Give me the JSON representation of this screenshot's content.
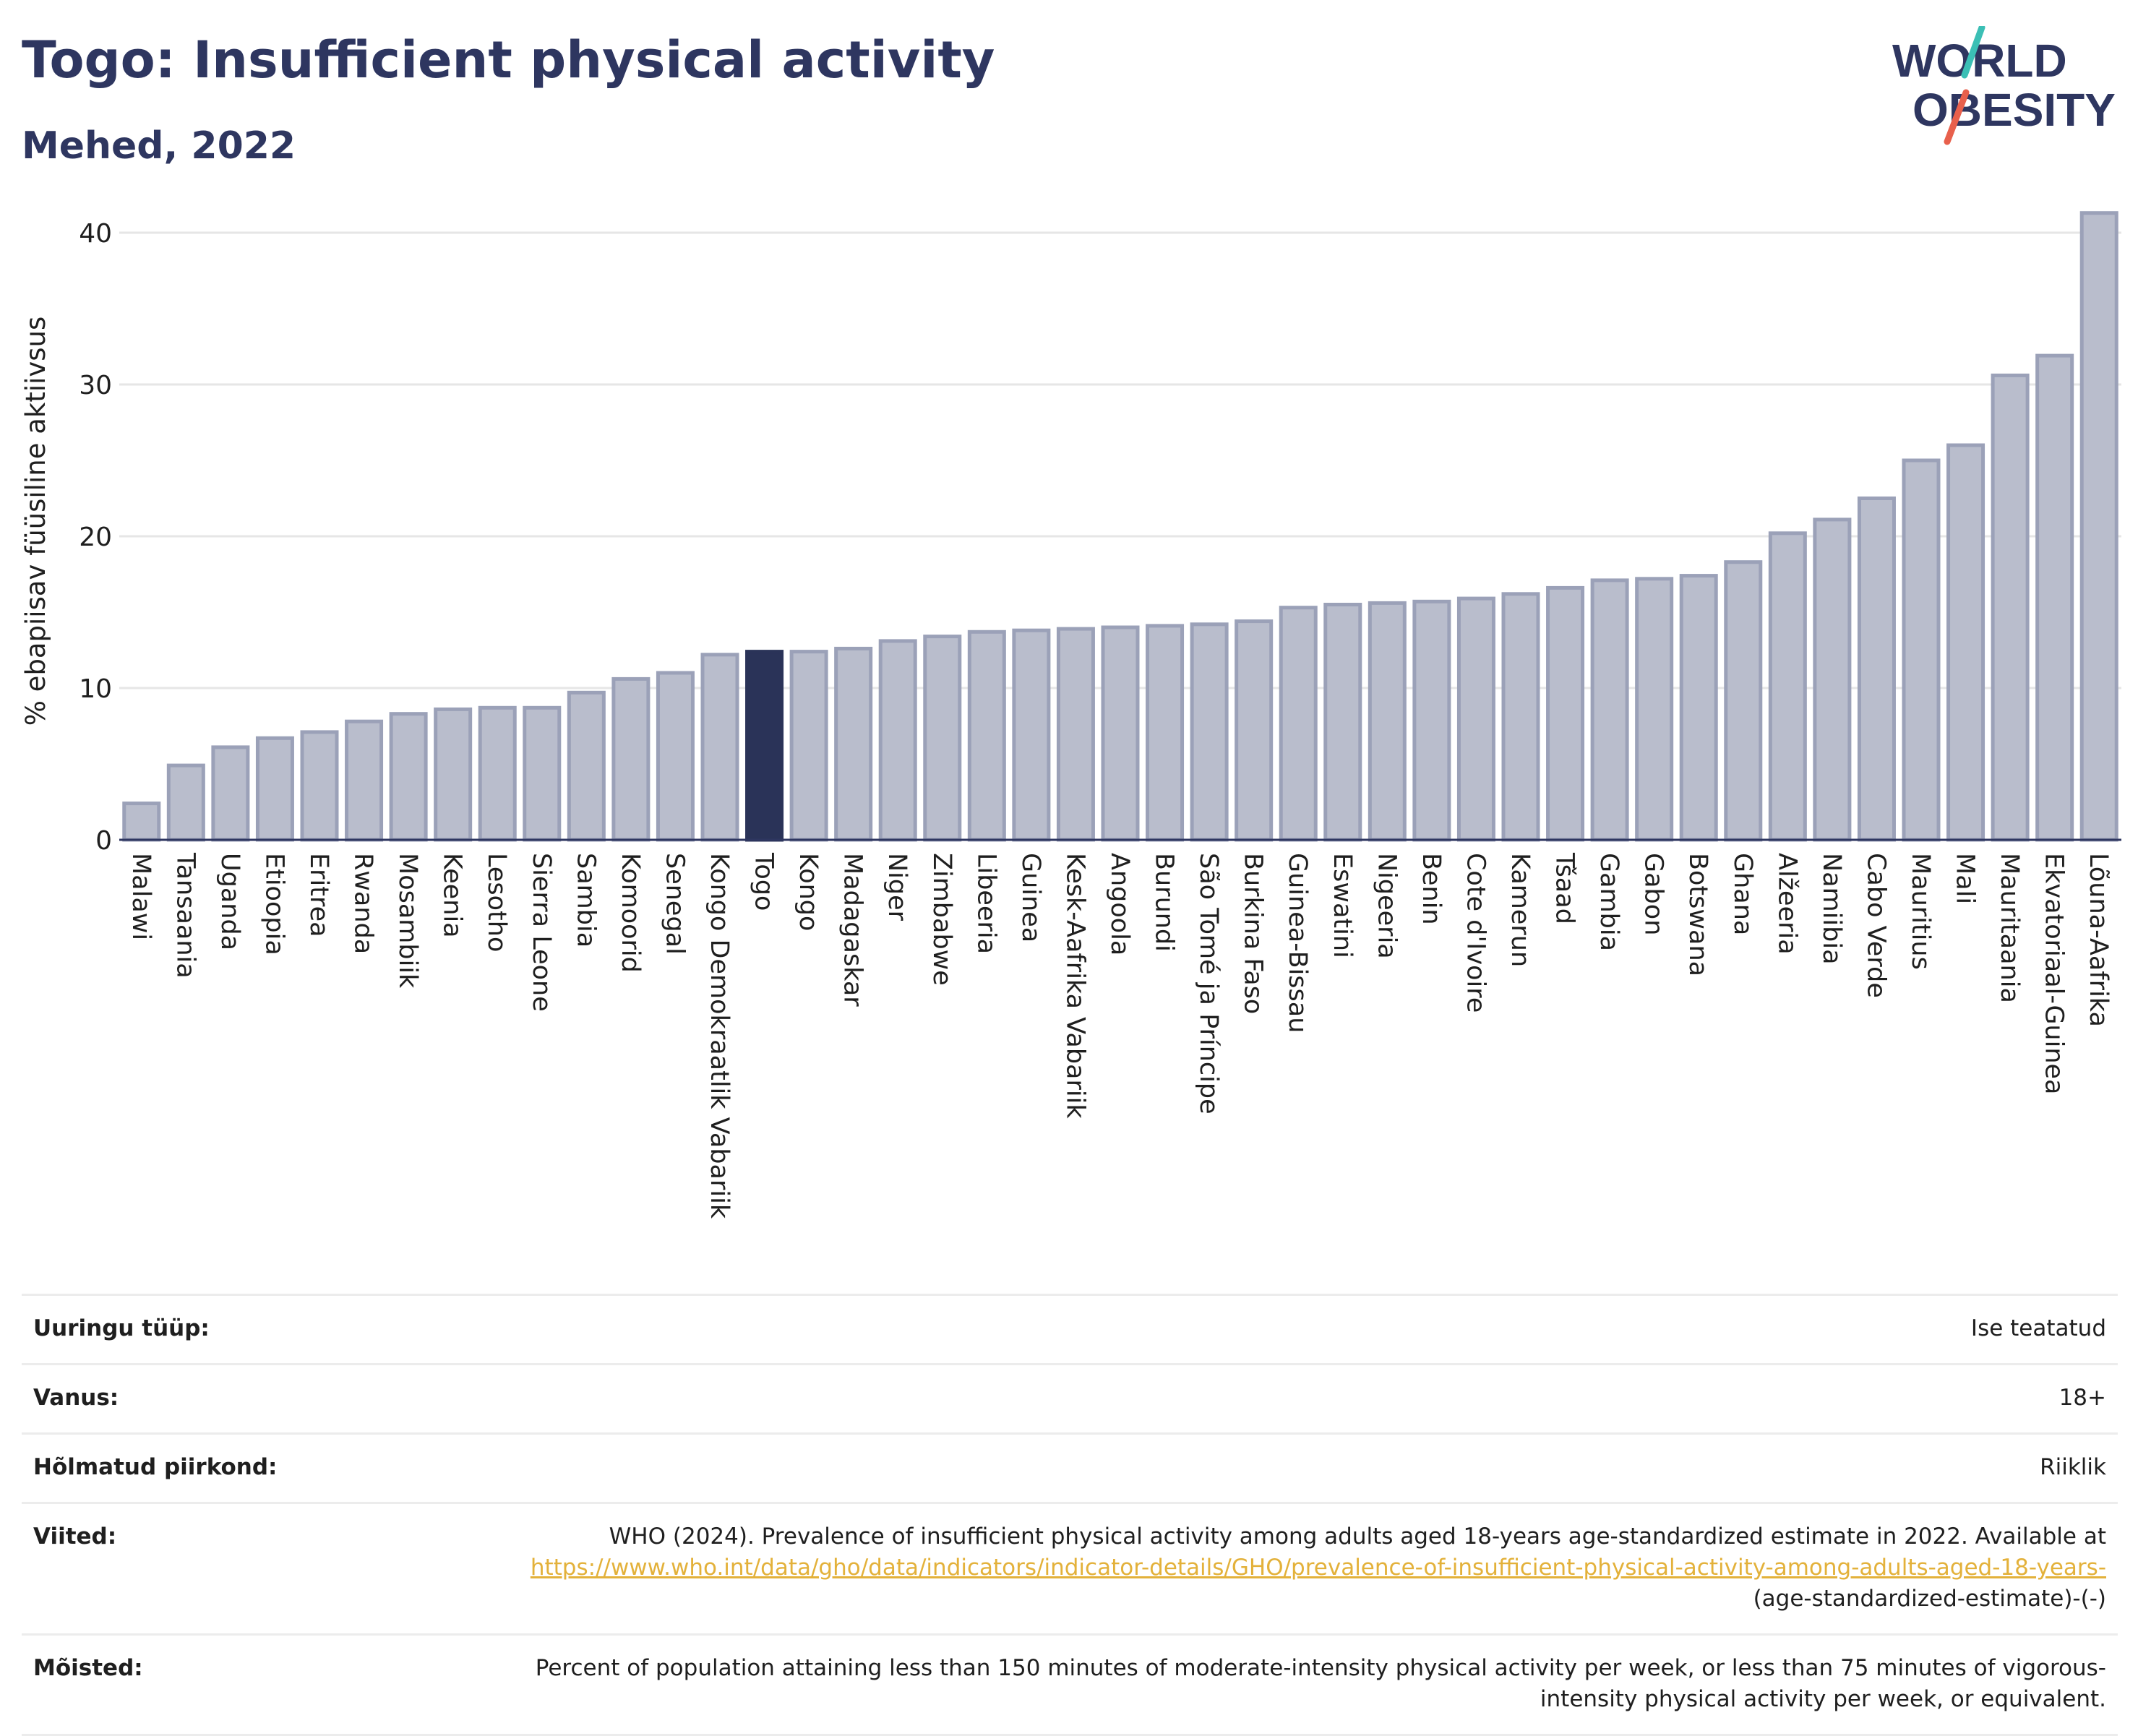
{
  "header": {
    "title": "Togo: Insufficient physical activity",
    "subtitle": "Mehed, 2022"
  },
  "logo": {
    "line1": "WORLD",
    "line2": "OBESITY",
    "accent_teal": "#3bbfb5",
    "accent_red": "#e8604c",
    "text_color": "#2e3660"
  },
  "chart_data": {
    "type": "bar",
    "ylabel": "% ebapiisav füüsiline aktiivsus",
    "xlabel": "",
    "ylim": [
      0,
      42
    ],
    "yticks": [
      0,
      10,
      20,
      30,
      40
    ],
    "grid": true,
    "highlight": "Togo",
    "highlight_color": "#2a3358",
    "bar_color": "#b9bdcc",
    "bar_edge_color": "#9ba1b8",
    "categories": [
      "Malawi",
      "Tansaania",
      "Uganda",
      "Etioopia",
      "Eritrea",
      "Rwanda",
      "Mosambiik",
      "Keenia",
      "Lesotho",
      "Sierra Leone",
      "Sambia",
      "Komoorid",
      "Senegal",
      "Kongo Demokraatlik Vabariik",
      "Togo",
      "Kongo",
      "Madagaskar",
      "Niger",
      "Zimbabwe",
      "Libeeria",
      "Guinea",
      "Kesk-Aafrika Vabariik",
      "Angoola",
      "Burundi",
      "São Tomé ja Príncipe",
      "Burkina Faso",
      "Guinea-Bissau",
      "Eswatini",
      "Nigeeria",
      "Benin",
      "Cote d'Ivoire",
      "Kamerun",
      "Tšaad",
      "Gambia",
      "Gabon",
      "Botswana",
      "Ghana",
      "Alžeeria",
      "Namiibia",
      "Cabo Verde",
      "Mauritius",
      "Mali",
      "Mauritaania",
      "Ekvatoriaal-Guinea",
      "Lõuna-Aafrika"
    ],
    "values": [
      2.4,
      4.9,
      6.1,
      6.7,
      7.1,
      7.8,
      8.3,
      8.6,
      8.7,
      8.7,
      9.7,
      10.6,
      11.0,
      12.2,
      12.4,
      12.4,
      12.6,
      13.1,
      13.4,
      13.7,
      13.8,
      13.9,
      14.0,
      14.1,
      14.2,
      14.4,
      15.3,
      15.5,
      15.6,
      15.7,
      15.9,
      16.2,
      16.6,
      17.1,
      17.2,
      17.4,
      18.3,
      20.2,
      21.1,
      22.5,
      25.0,
      26.0,
      30.6,
      31.9,
      41.3
    ]
  },
  "meta": {
    "survey_label": "Uuringu tüüp:",
    "survey_value": "Ise teatatud",
    "age_label": "Vanus:",
    "age_value": "18+",
    "region_label": "Hõlmatud piirkond:",
    "region_value": "Riiklik",
    "refs_label": "Viited:",
    "refs_text": "WHO (2024). Prevalence of insufficient physical activity among adults aged 18-years age-standardized estimate in 2022. Available at",
    "refs_link": "https://www.who.int/data/gho/data/indicators/indicator-details/GHO/prevalence-of-insufficient-physical-activity-among-adults-aged-18-years-",
    "refs_suffix": "(age-standardized-estimate)-(-)",
    "def_label": "Mõisted:",
    "def_text": "Percent of population attaining less than 150 minutes of moderate-intensity physical activity per week, or less than 75 minutes of vigorous-intensity physical activity per week, or equivalent."
  }
}
